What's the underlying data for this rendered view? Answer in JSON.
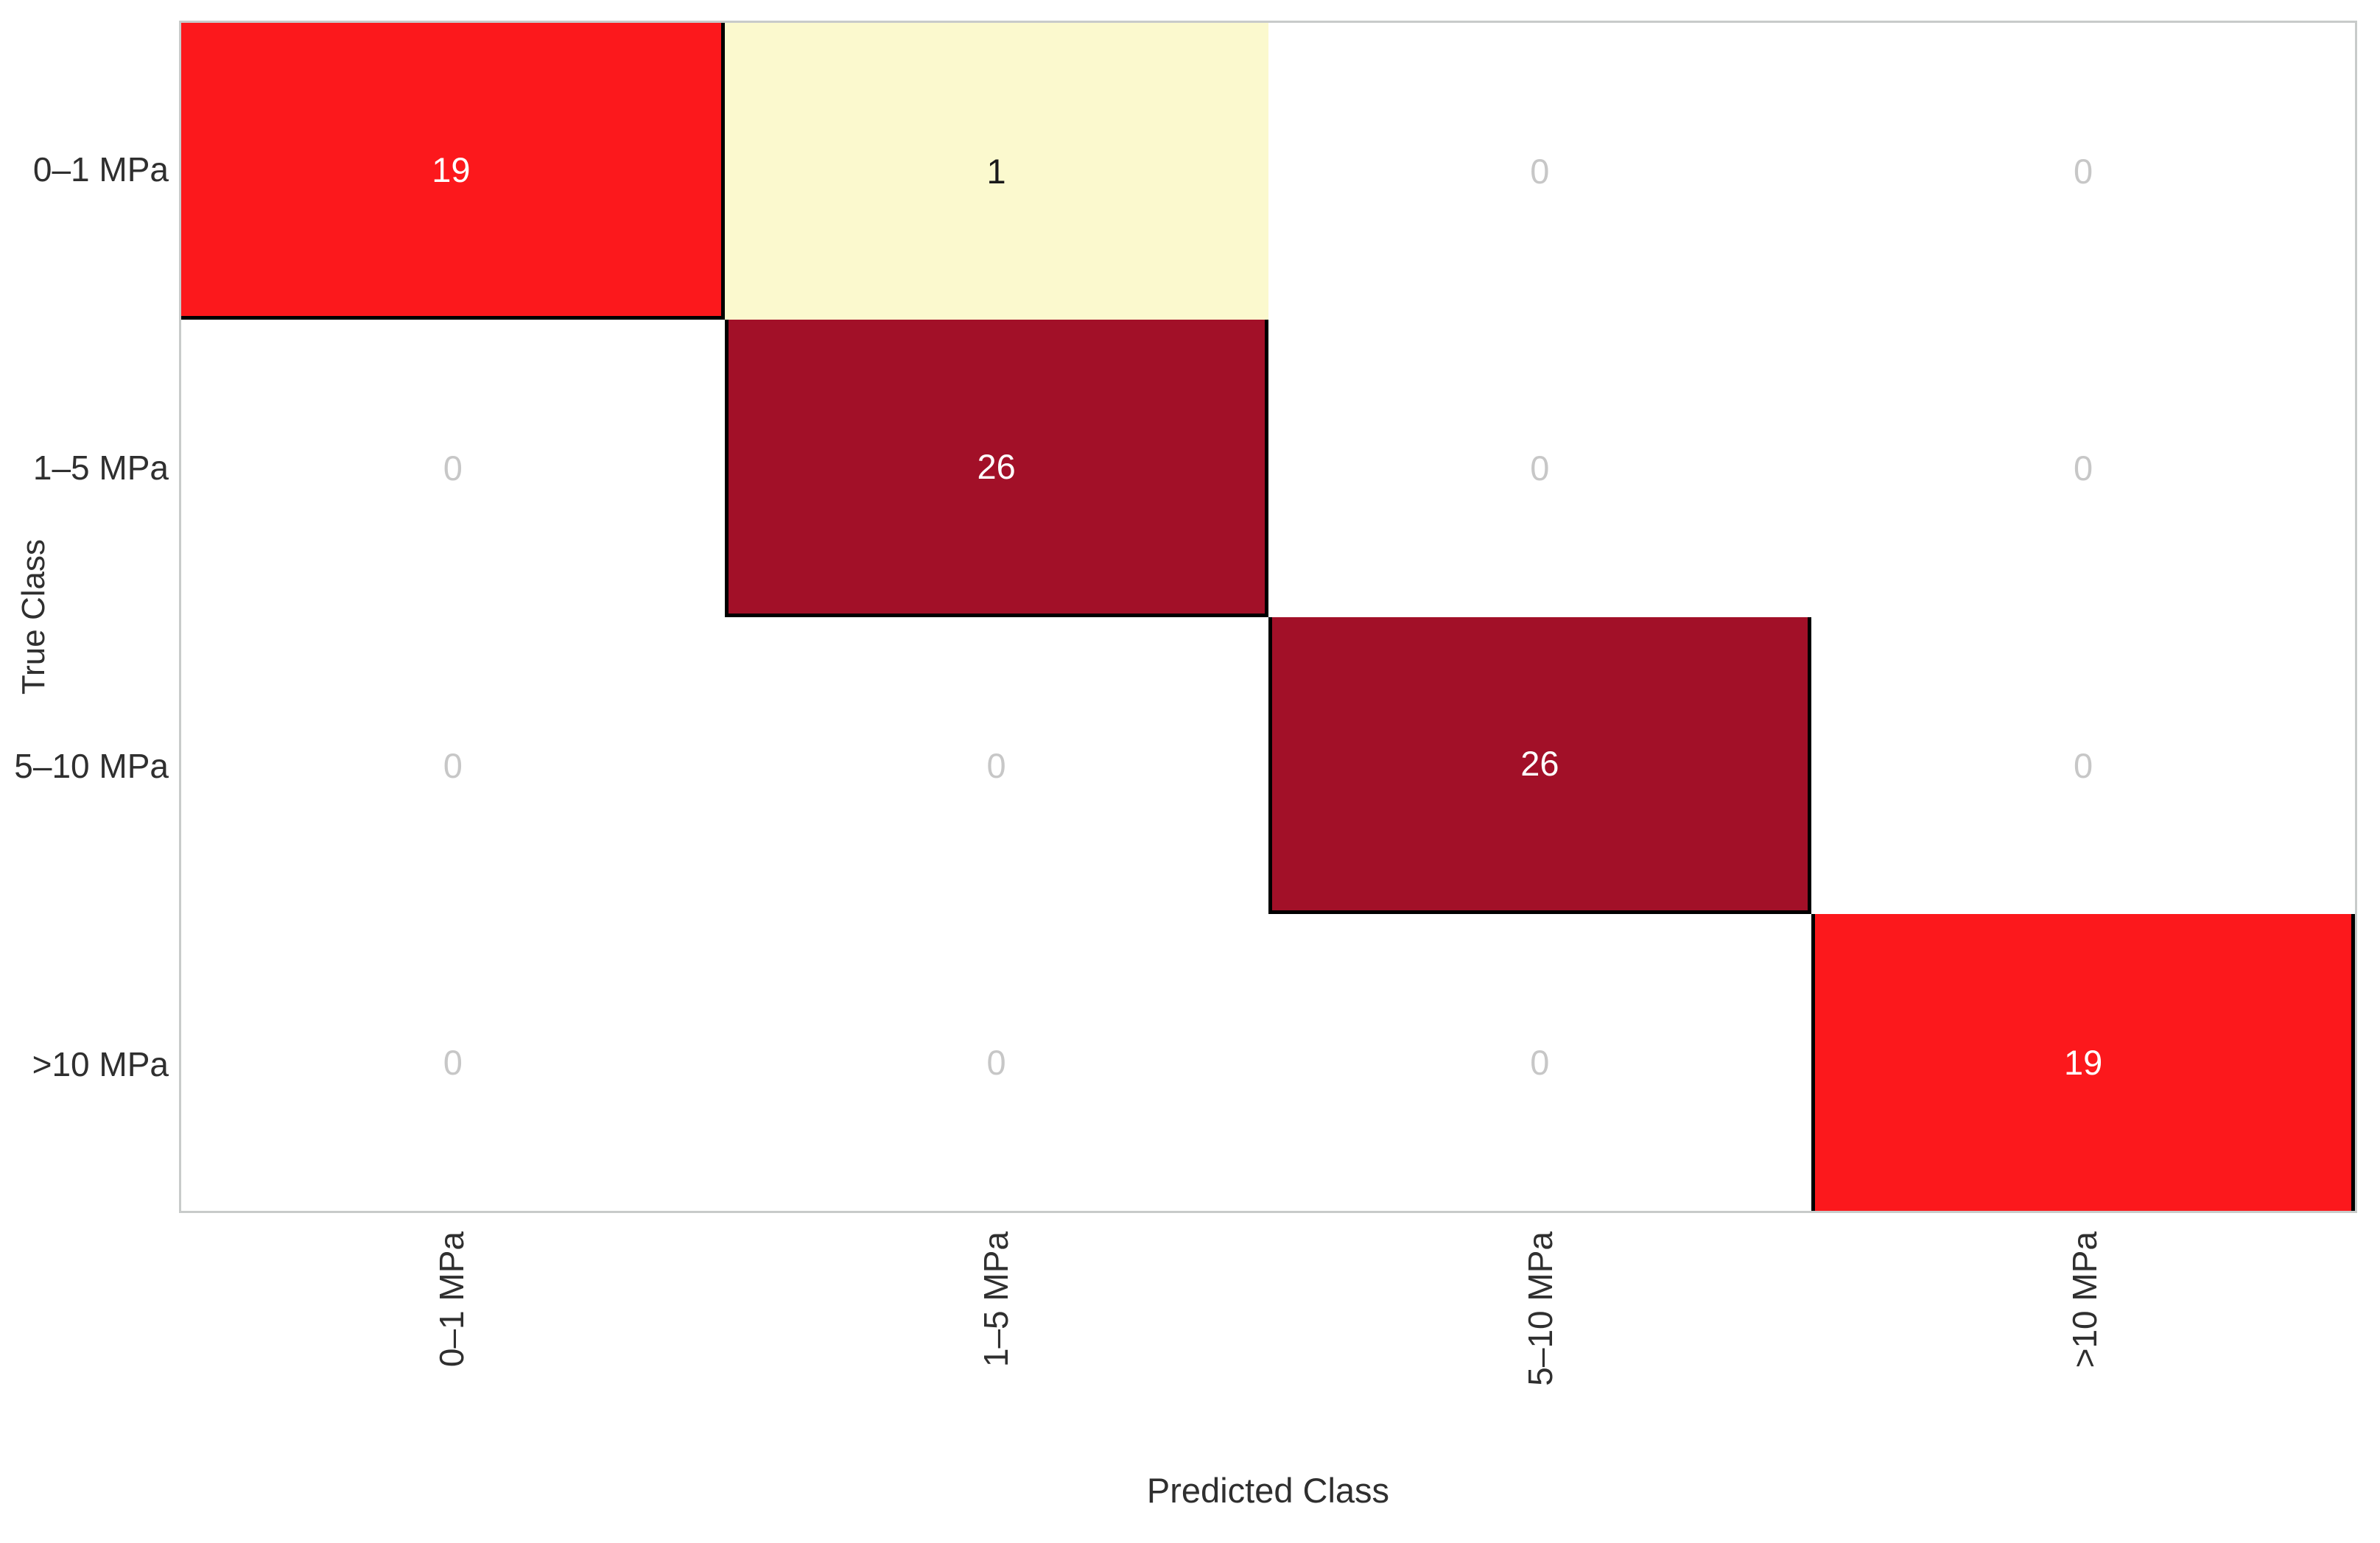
{
  "axes": {
    "x_label": "Predicted Class",
    "y_label": "True Class"
  },
  "x_ticks": [
    "0–1 MPa",
    "1–5 MPa",
    "5–10 MPa",
    ">10 MPa"
  ],
  "y_ticks": [
    "0–1 MPa",
    "1–5 MPa",
    "5–10 MPa",
    ">10 MPa"
  ],
  "colors": {
    "high_cell_red": "#FC181C",
    "max_cell_maroon": "#A21028",
    "low_cell_cream": "#FBF9CE",
    "zero_cell_white": "#FFFFFF",
    "zero_text_gray": "#C7C7C7",
    "cell_text_white": "#FFFFFF",
    "cell_text_black": "#1A1A1A",
    "diagonal_outline_black": "#000000",
    "frame_gray": "#C8CBCA",
    "axis_text": "#2F2F2F"
  },
  "chart_data": {
    "type": "heatmap",
    "title": "",
    "xlabel": "Predicted Class",
    "ylabel": "True Class",
    "x_categories": [
      "0–1 MPa",
      "1–5 MPa",
      "5–10 MPa",
      ">10 MPa"
    ],
    "y_categories": [
      "0–1 MPa",
      "1–5 MPa",
      "5–10 MPa",
      ">10 MPa"
    ],
    "matrix": [
      [
        19,
        1,
        0,
        0
      ],
      [
        0,
        26,
        0,
        0
      ],
      [
        0,
        0,
        26,
        0
      ],
      [
        0,
        0,
        0,
        19
      ]
    ],
    "value_range": [
      0,
      26
    ],
    "legend_position": "none",
    "grid": false,
    "x_tick_rotation_deg": 90,
    "cell_colors": [
      [
        "#FC181C",
        "#FBF9CE",
        "#FFFFFF",
        "#FFFFFF"
      ],
      [
        "#FFFFFF",
        "#A21028",
        "#FFFFFF",
        "#FFFFFF"
      ],
      [
        "#FFFFFF",
        "#FFFFFF",
        "#A21028",
        "#FFFFFF"
      ],
      [
        "#FFFFFF",
        "#FFFFFF",
        "#FFFFFF",
        "#FC181C"
      ]
    ],
    "value_colors": [
      [
        "#FFFFFF",
        "#1A1A1A",
        "#C7C7C7",
        "#C7C7C7"
      ],
      [
        "#C7C7C7",
        "#FFFFFF",
        "#C7C7C7",
        "#C7C7C7"
      ],
      [
        "#C7C7C7",
        "#C7C7C7",
        "#FFFFFF",
        "#C7C7C7"
      ],
      [
        "#C7C7C7",
        "#C7C7C7",
        "#C7C7C7",
        "#FFFFFF"
      ]
    ]
  }
}
